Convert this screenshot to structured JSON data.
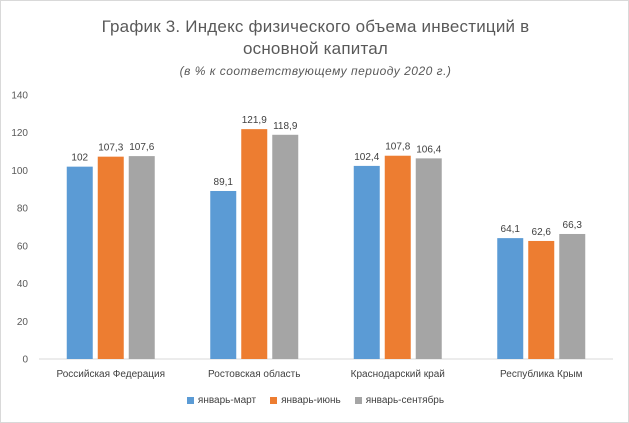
{
  "chart_data": {
    "type": "bar",
    "title_line1": "График 3. Индекс физического объема инвестиций в",
    "title_line2": "основной капитал",
    "subtitle": "(в % к соответствующему периоду 2020 г.)",
    "categories": [
      "Российская Федерация",
      "Ростовская область",
      "Краснодарский край",
      "Республика Крым"
    ],
    "series": [
      {
        "name": "январь-март",
        "color": "#5b9bd5",
        "values": [
          102,
          89.1,
          102.4,
          64.1
        ],
        "labels": [
          "102",
          "89,1",
          "102,4",
          "64,1"
        ]
      },
      {
        "name": "январь-июнь",
        "color": "#ed7d31",
        "values": [
          107.3,
          121.9,
          107.8,
          62.6
        ],
        "labels": [
          "107,3",
          "121,9",
          "107,8",
          "62,6"
        ]
      },
      {
        "name": "январь-сентябрь",
        "color": "#a5a5a5",
        "values": [
          107.6,
          118.9,
          106.4,
          66.3
        ],
        "labels": [
          "107,6",
          "118,9",
          "106,4",
          "66,3"
        ]
      }
    ],
    "ylim": [
      0,
      140
    ],
    "yticks": [
      0,
      20,
      40,
      60,
      80,
      100,
      120,
      140
    ],
    "grid": false,
    "legend_position": "bottom"
  }
}
